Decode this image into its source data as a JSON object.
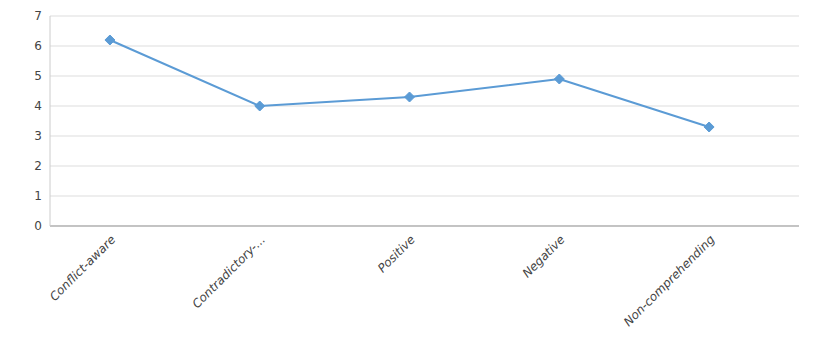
{
  "chart_data": {
    "type": "line",
    "categories": [
      "Conflict-aware",
      "Contradictory-...",
      "Positive",
      "Negative",
      "Non-comprehending"
    ],
    "values": [
      6.2,
      4.0,
      4.3,
      4.9,
      3.3
    ],
    "color": "#5B9BD5",
    "marker": "diamond",
    "ylim": [
      0,
      7
    ],
    "yticks": [
      0,
      1,
      2,
      3,
      4,
      5,
      6,
      7
    ],
    "grid": true
  }
}
